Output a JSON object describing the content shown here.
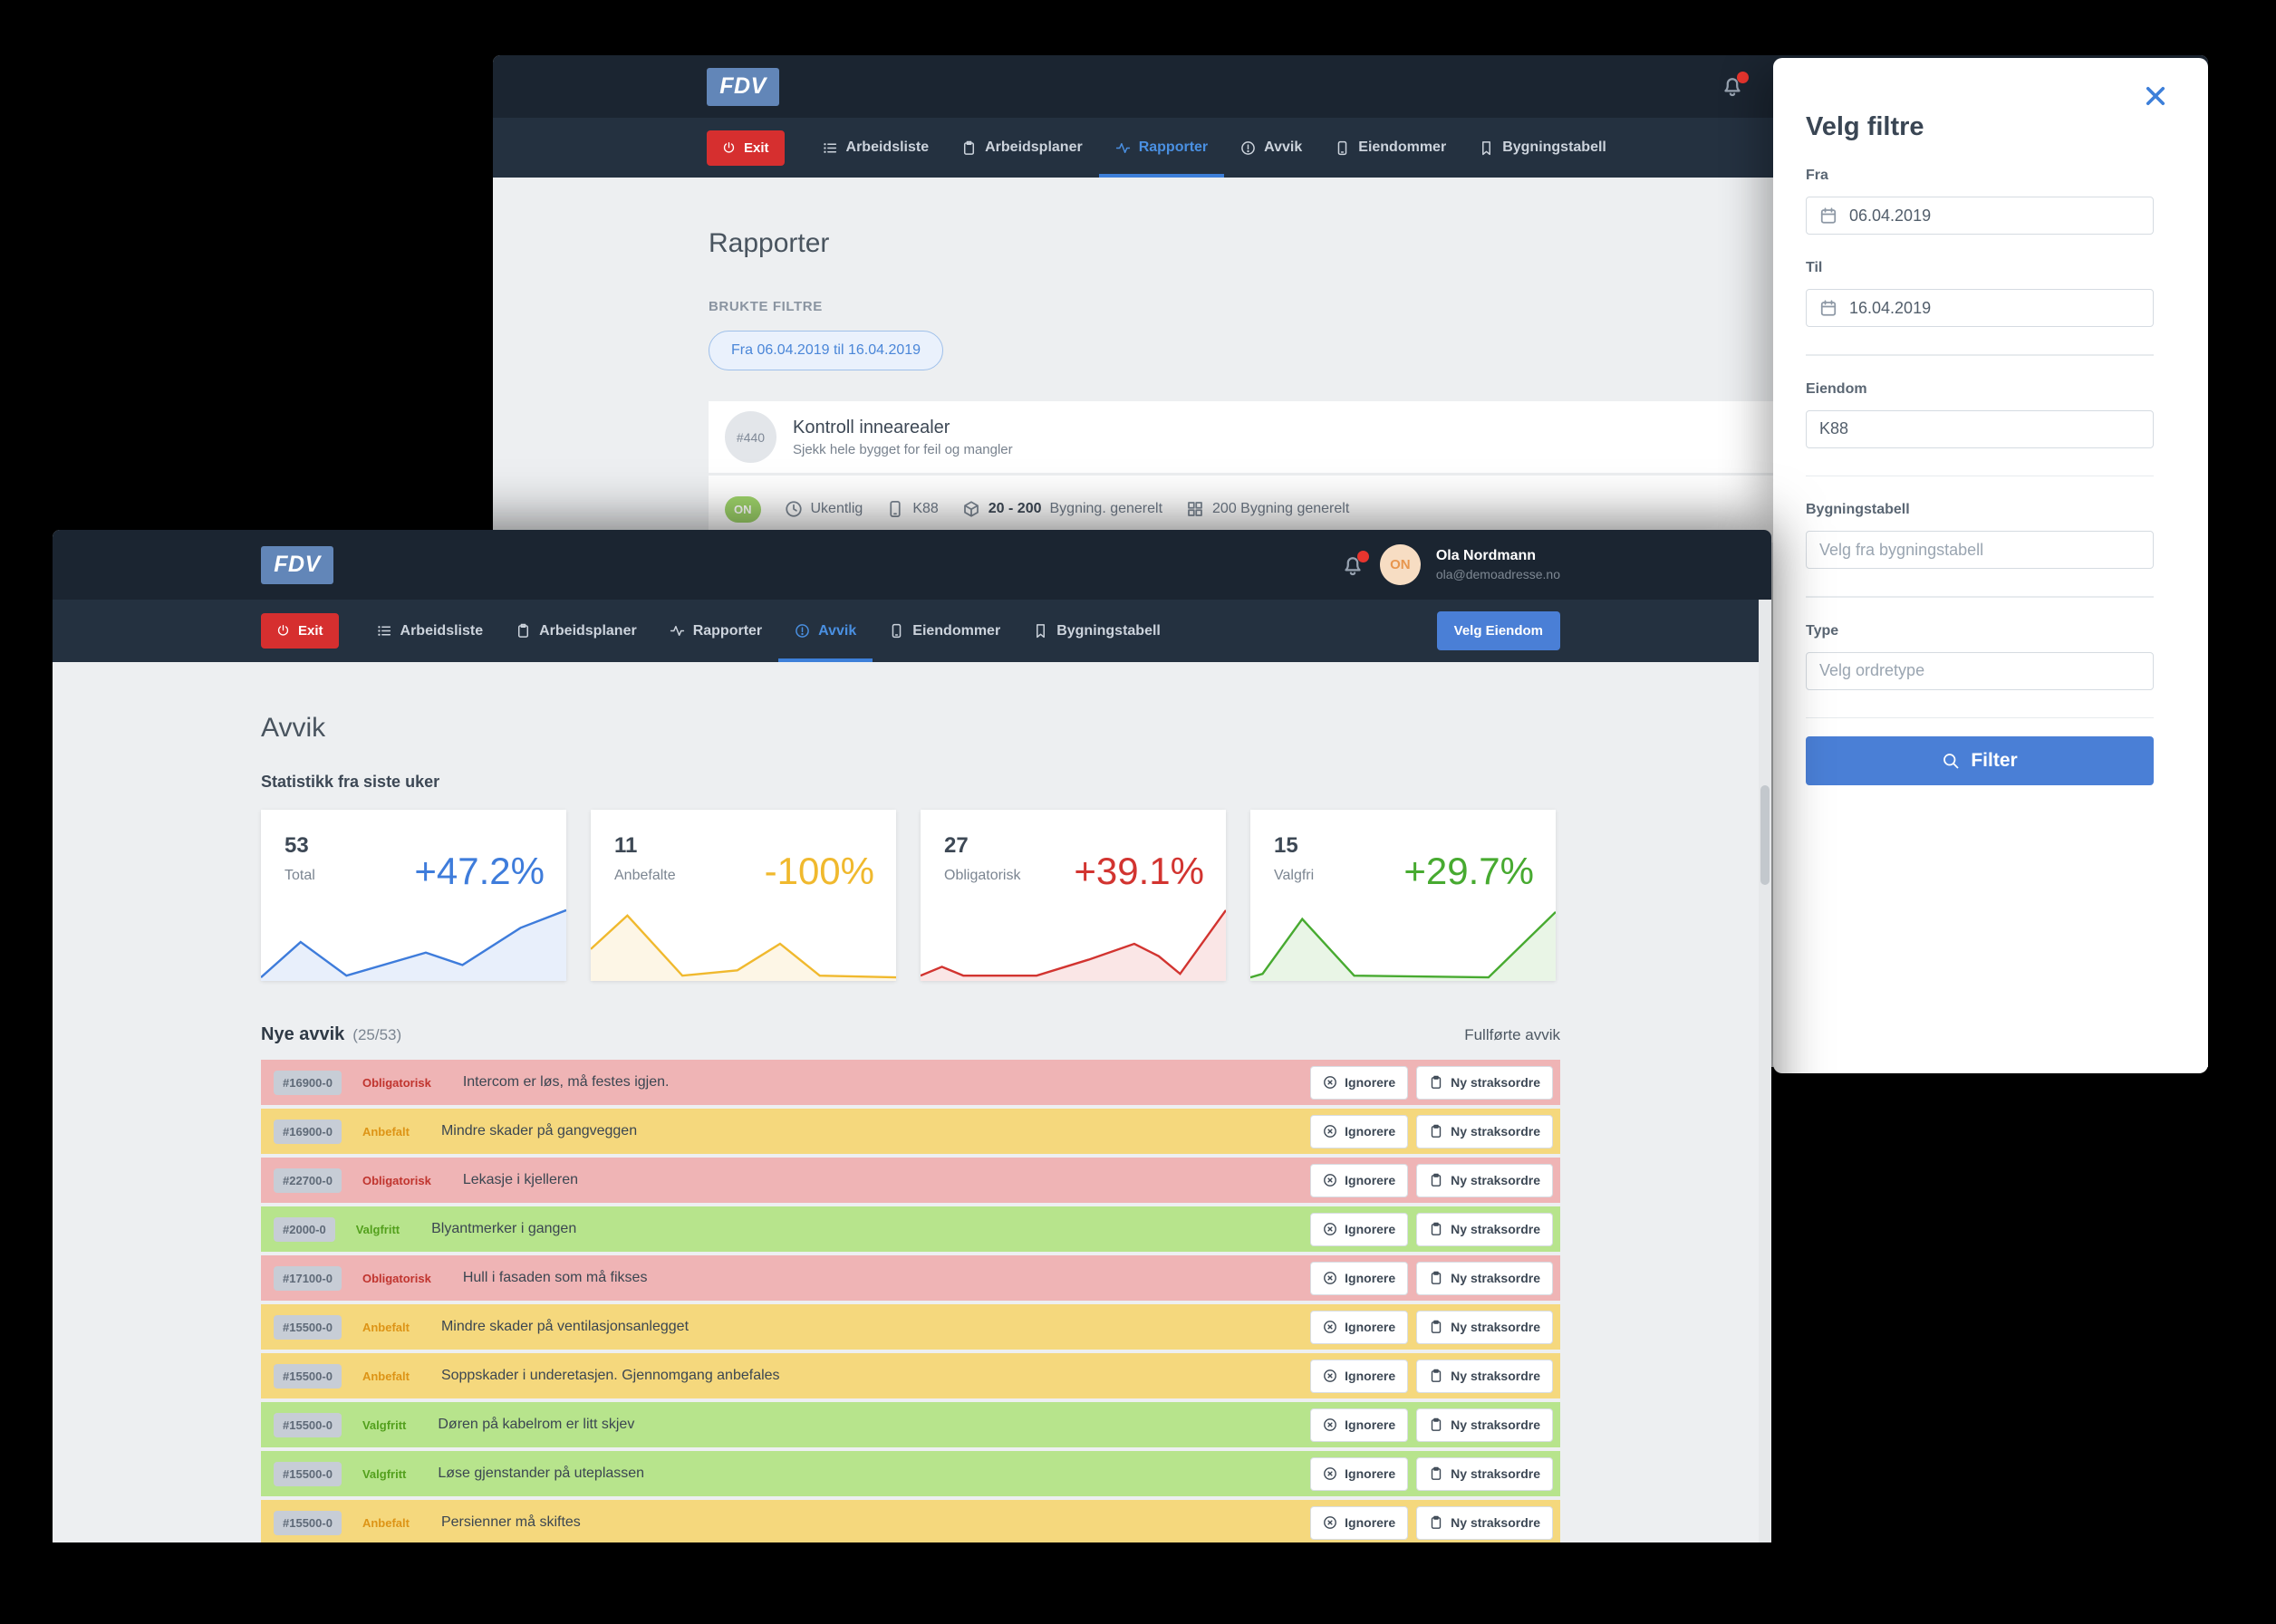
{
  "colors": {
    "header_bg": "#1b2531",
    "nav_bg": "#243140",
    "brand_bg": "#6286b8",
    "exit_red": "#d62f2f",
    "accent_blue": "#4a7fd6",
    "active_tab_blue": "#4a90e2",
    "content_bg": "#edeff1",
    "notification_red": "#e8352e"
  },
  "background_window": {
    "brand": "FDV",
    "nav": {
      "exit": "Exit",
      "items": [
        {
          "label": "Arbeidsliste",
          "icon": "list-icon"
        },
        {
          "label": "Arbeidsplaner",
          "icon": "clipboard-icon"
        },
        {
          "label": "Rapporter",
          "icon": "activity-icon",
          "active": true
        },
        {
          "label": "Avvik",
          "icon": "alert-circle-icon"
        },
        {
          "label": "Eiendommer",
          "icon": "tablet-icon"
        },
        {
          "label": "Bygningstabell",
          "icon": "bookmark-icon"
        }
      ]
    },
    "page_title": "Rapporter",
    "filters_label": "BRUKTE FILTRE",
    "filter_chip": "Fra 06.04.2019 til 16.04.2019",
    "report_card": {
      "badge": "#440",
      "title": "Kontroll innearealer",
      "subtitle": "Sjekk hele bygget for feil og mangler"
    },
    "meta": {
      "status": "ON",
      "items": [
        {
          "icon": "clock-icon",
          "text": "Ukentlig"
        },
        {
          "icon": "tablet-icon",
          "text": "K88"
        },
        {
          "icon": "cube-icon",
          "strong": "20 - 200",
          "text": "Bygning. generelt"
        },
        {
          "icon": "grid-icon",
          "text": "200 Bygning generelt"
        }
      ]
    }
  },
  "foreground_window": {
    "brand": "FDV",
    "user": {
      "initials": "ON",
      "name": "Ola Nordmann",
      "email": "ola@demoadresse.no"
    },
    "nav": {
      "exit": "Exit",
      "items": [
        {
          "label": "Arbeidsliste",
          "icon": "list-icon"
        },
        {
          "label": "Arbeidsplaner",
          "icon": "clipboard-icon"
        },
        {
          "label": "Rapporter",
          "icon": "activity-icon"
        },
        {
          "label": "Avvik",
          "icon": "alert-circle-icon",
          "active": true
        },
        {
          "label": "Eiendommer",
          "icon": "tablet-icon"
        },
        {
          "label": "Bygningstabell",
          "icon": "bookmark-icon"
        }
      ]
    },
    "velg_eiendom": "Velg Eiendom",
    "page_title": "Avvik",
    "stats_title": "Statistikk fra siste uker",
    "stats": [
      {
        "count": "53",
        "label": "Total",
        "percent": "+47.2%",
        "color": "#3e7cdb",
        "spark": [
          [
            0,
            40
          ],
          [
            13,
            20
          ],
          [
            28,
            39
          ],
          [
            54,
            26
          ],
          [
            66,
            33
          ],
          [
            85,
            12
          ],
          [
            100,
            2
          ]
        ]
      },
      {
        "count": "11",
        "label": "Anbefalte",
        "percent": "-100%",
        "color": "#f0b92e",
        "spark": [
          [
            0,
            24
          ],
          [
            12,
            5
          ],
          [
            30,
            39
          ],
          [
            48,
            36
          ],
          [
            62,
            21
          ],
          [
            75,
            39
          ],
          [
            100,
            40
          ]
        ]
      },
      {
        "count": "27",
        "label": "Obligatorisk",
        "percent": "+39.1%",
        "color": "#d23430",
        "spark": [
          [
            0,
            39
          ],
          [
            7,
            34
          ],
          [
            14,
            39
          ],
          [
            38,
            39
          ],
          [
            55,
            30
          ],
          [
            70,
            21
          ],
          [
            78,
            28
          ],
          [
            85,
            38
          ],
          [
            100,
            2
          ]
        ]
      },
      {
        "count": "15",
        "label": "Valgfri",
        "percent": "+29.7%",
        "color": "#47aa30",
        "spark": [
          [
            0,
            40
          ],
          [
            4,
            38
          ],
          [
            17,
            7
          ],
          [
            34,
            39
          ],
          [
            78,
            40
          ],
          [
            100,
            3
          ]
        ]
      }
    ],
    "list_header": {
      "title": "Nye avvik",
      "count": "(25/53)",
      "link": "Fullførte avvik"
    },
    "row_actions": {
      "ignore": "Ignorere",
      "new_order": "Ny straksordre"
    },
    "rows": [
      {
        "id": "#16900-0",
        "category": "Obligatorisk",
        "type": "obligatorisk",
        "text": "Intercom er løs, må festes igjen."
      },
      {
        "id": "#16900-0",
        "category": "Anbefalt",
        "type": "anbefalt",
        "text": "Mindre skader på gangveggen"
      },
      {
        "id": "#22700-0",
        "category": "Obligatorisk",
        "type": "obligatorisk",
        "text": "Lekasje i kjelleren"
      },
      {
        "id": "#2000-0",
        "category": "Valgfritt",
        "type": "valgfritt",
        "text": "Blyantmerker i gangen"
      },
      {
        "id": "#17100-0",
        "category": "Obligatorisk",
        "type": "obligatorisk",
        "text": "Hull i fasaden som må fikses"
      },
      {
        "id": "#15500-0",
        "category": "Anbefalt",
        "type": "anbefalt",
        "text": "Mindre skader på ventilasjonsanlegget"
      },
      {
        "id": "#15500-0",
        "category": "Anbefalt",
        "type": "anbefalt",
        "text": "Soppskader i underetasjen. Gjennomgang anbefales"
      },
      {
        "id": "#15500-0",
        "category": "Valgfritt",
        "type": "valgfritt",
        "text": "Døren på kabelrom er litt skjev"
      },
      {
        "id": "#15500-0",
        "category": "Valgfritt",
        "type": "valgfritt",
        "text": "Løse gjenstander på uteplassen"
      },
      {
        "id": "#15500-0",
        "category": "Anbefalt",
        "type": "anbefalt",
        "text": "Persienner må skiftes"
      }
    ]
  },
  "filter_panel": {
    "title": "Velg filtre",
    "fields": [
      {
        "label": "Fra",
        "value": "06.04.2019",
        "icon": "calendar-icon",
        "divider_after": false
      },
      {
        "label": "Til",
        "value": "16.04.2019",
        "icon": "calendar-icon",
        "divider_after": true
      },
      {
        "label": "Eiendom",
        "value": "K88",
        "divider_after": true
      },
      {
        "label": "Bygningstabell",
        "placeholder": "Velg fra bygningstabell",
        "divider_after": true
      },
      {
        "label": "Type",
        "placeholder": "Velg ordretype",
        "divider_after": true
      }
    ],
    "submit": "Filter"
  }
}
